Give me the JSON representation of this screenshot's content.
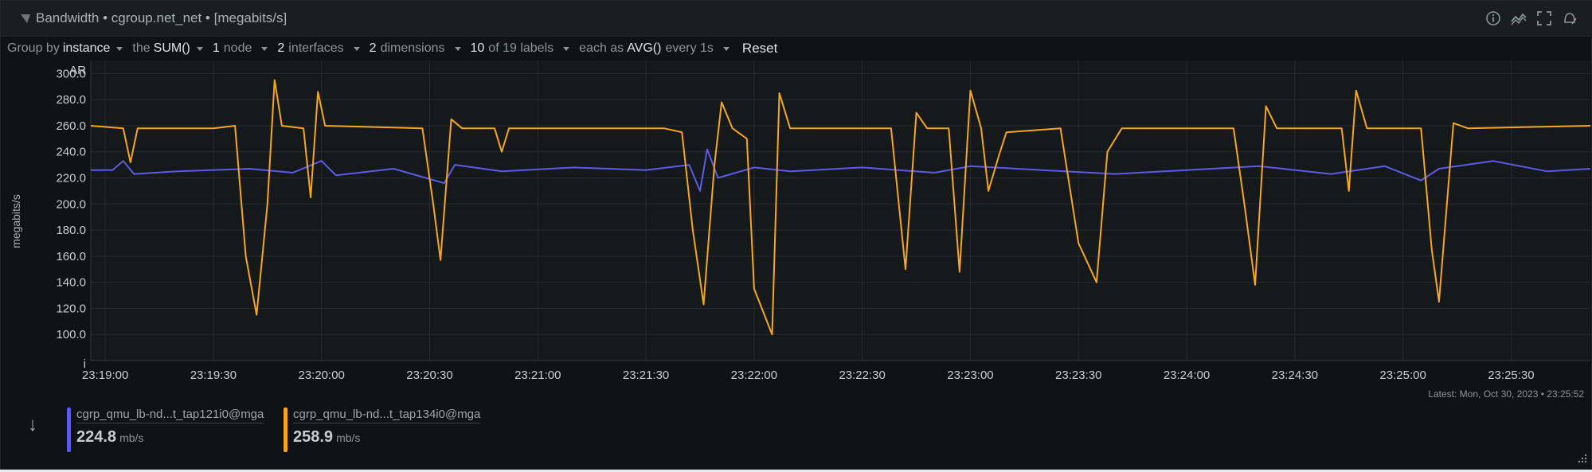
{
  "header": {
    "title": "Bandwidth • cgroup.net_net • [megabits/s]",
    "icons": [
      "info-icon",
      "correlate-icon",
      "fullscreen-icon",
      "alert-icon"
    ]
  },
  "filters": [
    {
      "prefix": "Group by",
      "value": "instance",
      "suffix": ""
    },
    {
      "prefix": "the",
      "value": "SUM()",
      "suffix": ""
    },
    {
      "prefix": "",
      "value": "1",
      "suffix": "node"
    },
    {
      "prefix": "",
      "value": "2",
      "suffix": "interfaces"
    },
    {
      "prefix": "",
      "value": "2",
      "suffix": "dimensions"
    },
    {
      "prefix": "",
      "value": "10",
      "suffix": "of 19 labels"
    },
    {
      "prefix": "each as",
      "value": "AVG()",
      "suffix": "every 1s"
    }
  ],
  "reset_label": "Reset",
  "latest": "Latest:  Mon, Oct 30, 2023 • 23:25:52",
  "colors": {
    "series1": "#5b5be6",
    "series2": "#f5a623"
  },
  "chart_data": {
    "type": "line",
    "ylabel": "megabits/s",
    "corner_top": "AR",
    "corner_bottom": "i",
    "ylim": [
      80,
      310
    ],
    "yticks": [
      100,
      120,
      140,
      160,
      180,
      200,
      220,
      240,
      260,
      280,
      300
    ],
    "ytick_labels": [
      "100.0",
      "120.0",
      "140.0",
      "160.0",
      "180.0",
      "200.0",
      "220.0",
      "240.0",
      "260.0",
      "280.0",
      "300.0"
    ],
    "xlim": [
      "23:18:56",
      "23:25:52"
    ],
    "xticks": [
      "23:19:00",
      "23:19:30",
      "23:20:00",
      "23:20:30",
      "23:21:00",
      "23:21:30",
      "23:22:00",
      "23:22:30",
      "23:23:00",
      "23:23:30",
      "23:24:00",
      "23:24:30",
      "23:25:00",
      "23:25:30"
    ],
    "grid": true,
    "series": [
      {
        "name": "cgrp_qmu_lb-nd...t_tap121i0@mga",
        "color": "#5b5be6",
        "points": [
          [
            "23:18:56",
            226
          ],
          [
            "23:19:02",
            226
          ],
          [
            "23:19:05",
            233
          ],
          [
            "23:19:08",
            223
          ],
          [
            "23:19:20",
            225
          ],
          [
            "23:19:40",
            227
          ],
          [
            "23:19:52",
            224
          ],
          [
            "23:20:00",
            233
          ],
          [
            "23:20:04",
            222
          ],
          [
            "23:20:20",
            227
          ],
          [
            "23:20:34",
            216
          ],
          [
            "23:20:37",
            230
          ],
          [
            "23:20:50",
            225
          ],
          [
            "23:21:10",
            228
          ],
          [
            "23:21:30",
            226
          ],
          [
            "23:21:42",
            230
          ],
          [
            "23:21:45",
            210
          ],
          [
            "23:21:47",
            242
          ],
          [
            "23:21:50",
            220
          ],
          [
            "23:22:00",
            228
          ],
          [
            "23:22:10",
            225
          ],
          [
            "23:22:30",
            228
          ],
          [
            "23:22:50",
            224
          ],
          [
            "23:23:00",
            229
          ],
          [
            "23:23:20",
            226
          ],
          [
            "23:23:40",
            223
          ],
          [
            "23:24:00",
            226
          ],
          [
            "23:24:20",
            229
          ],
          [
            "23:24:40",
            223
          ],
          [
            "23:24:55",
            229
          ],
          [
            "23:25:05",
            218
          ],
          [
            "23:25:10",
            227
          ],
          [
            "23:25:25",
            233
          ],
          [
            "23:25:40",
            225
          ],
          [
            "23:25:52",
            227
          ]
        ]
      },
      {
        "name": "cgrp_qmu_lb-nd...t_tap134i0@mga",
        "color": "#f5a623",
        "points": [
          [
            "23:18:56",
            260
          ],
          [
            "23:19:05",
            258
          ],
          [
            "23:19:07",
            232
          ],
          [
            "23:19:09",
            258
          ],
          [
            "23:19:30",
            258
          ],
          [
            "23:19:36",
            260
          ],
          [
            "23:19:39",
            160
          ],
          [
            "23:19:42",
            115
          ],
          [
            "23:19:45",
            200
          ],
          [
            "23:19:47",
            295
          ],
          [
            "23:19:49",
            260
          ],
          [
            "23:19:55",
            258
          ],
          [
            "23:19:57",
            205
          ],
          [
            "23:19:59",
            286
          ],
          [
            "23:20:01",
            260
          ],
          [
            "23:20:28",
            258
          ],
          [
            "23:20:31",
            200
          ],
          [
            "23:20:33",
            157
          ],
          [
            "23:20:36",
            265
          ],
          [
            "23:20:39",
            258
          ],
          [
            "23:20:48",
            258
          ],
          [
            "23:20:50",
            240
          ],
          [
            "23:20:52",
            258
          ],
          [
            "23:21:35",
            258
          ],
          [
            "23:21:40",
            255
          ],
          [
            "23:21:43",
            180
          ],
          [
            "23:21:46",
            123
          ],
          [
            "23:21:49",
            230
          ],
          [
            "23:21:51",
            278
          ],
          [
            "23:21:54",
            258
          ],
          [
            "23:21:58",
            250
          ],
          [
            "23:22:00",
            135
          ],
          [
            "23:22:05",
            100
          ],
          [
            "23:22:07",
            285
          ],
          [
            "23:22:10",
            258
          ],
          [
            "23:22:38",
            258
          ],
          [
            "23:22:42",
            150
          ],
          [
            "23:22:45",
            270
          ],
          [
            "23:22:48",
            258
          ],
          [
            "23:22:54",
            258
          ],
          [
            "23:22:57",
            148
          ],
          [
            "23:23:00",
            287
          ],
          [
            "23:23:03",
            258
          ],
          [
            "23:23:05",
            210
          ],
          [
            "23:23:08",
            238
          ],
          [
            "23:23:10",
            255
          ],
          [
            "23:23:25",
            258
          ],
          [
            "23:23:30",
            170
          ],
          [
            "23:23:35",
            140
          ],
          [
            "23:23:38",
            240
          ],
          [
            "23:23:42",
            258
          ],
          [
            "23:24:13",
            258
          ],
          [
            "23:24:16",
            200
          ],
          [
            "23:24:19",
            138
          ],
          [
            "23:24:22",
            275
          ],
          [
            "23:24:25",
            258
          ],
          [
            "23:24:43",
            258
          ],
          [
            "23:24:45",
            210
          ],
          [
            "23:24:47",
            287
          ],
          [
            "23:24:50",
            258
          ],
          [
            "23:25:05",
            258
          ],
          [
            "23:25:08",
            165
          ],
          [
            "23:25:10",
            125
          ],
          [
            "23:25:14",
            262
          ],
          [
            "23:25:18",
            258
          ],
          [
            "23:25:52",
            260
          ]
        ]
      }
    ]
  },
  "legend": [
    {
      "name": "cgrp_qmu_lb-nd...t_tap121i0@mga",
      "value": "224.8",
      "unit": "mb/s",
      "color": "#5b5be6"
    },
    {
      "name": "cgrp_qmu_lb-nd...t_tap134i0@mga",
      "value": "258.9",
      "unit": "mb/s",
      "color": "#f5a623"
    }
  ]
}
